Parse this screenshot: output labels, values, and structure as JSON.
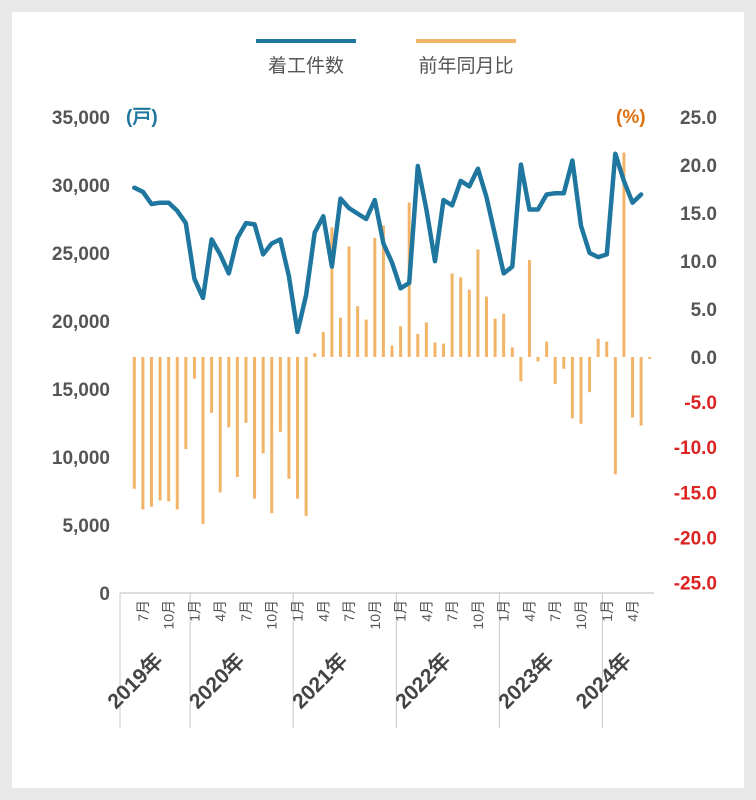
{
  "chart_data": {
    "type": "bar+line",
    "legend": [
      {
        "label": "着工件数",
        "color": "#1f77a0"
      },
      {
        "label": "前年同月比",
        "color": "#f2b468"
      }
    ],
    "y_left": {
      "unit_label": "(戸)",
      "unit_color": "#1f77a0",
      "min": 0,
      "max": 35000,
      "step": 5000,
      "ticks": [
        "0",
        "5,000",
        "10,000",
        "15,000",
        "20,000",
        "25,000",
        "30,000",
        "35,000"
      ]
    },
    "y_right": {
      "unit_label": "(%)",
      "unit_color": "#e07010",
      "min": -25,
      "max": 25,
      "step": 5,
      "ticks": [
        "25.0",
        "20.0",
        "15.0",
        "10.0",
        "5.0",
        "0.0",
        "-5.0",
        "-10.0",
        "-15.0",
        "-20.0",
        "-25.0"
      ],
      "positive_color": "#555555",
      "negative_color": "#dd2222"
    },
    "months": [
      "2019-06",
      "2019-07",
      "2019-08",
      "2019-09",
      "2019-10",
      "2019-11",
      "2019-12",
      "2020-01",
      "2020-02",
      "2020-03",
      "2020-04",
      "2020-05",
      "2020-06",
      "2020-07",
      "2020-08",
      "2020-09",
      "2020-10",
      "2020-11",
      "2020-12",
      "2021-01",
      "2021-02",
      "2021-03",
      "2021-04",
      "2021-05",
      "2021-06",
      "2021-07",
      "2021-08",
      "2021-09",
      "2021-10",
      "2021-11",
      "2021-12",
      "2022-01",
      "2022-02",
      "2022-03",
      "2022-04",
      "2022-05",
      "2022-06",
      "2022-07",
      "2022-08",
      "2022-09",
      "2022-10",
      "2022-11",
      "2022-12",
      "2023-01",
      "2023-02",
      "2023-03",
      "2023-04",
      "2023-05",
      "2023-06",
      "2023-07",
      "2023-08",
      "2023-09",
      "2023-10",
      "2023-11",
      "2023-12",
      "2024-01",
      "2024-02",
      "2024-03",
      "2024-04",
      "2024-05",
      "2024-06"
    ],
    "series": [
      {
        "name": "着工件数",
        "type": "line",
        "axis": "left",
        "color": "#1f77a0",
        "values": [
          29800,
          29500,
          28600,
          28700,
          28700,
          28100,
          27200,
          23100,
          21700,
          26000,
          24900,
          23500,
          26100,
          27200,
          27100,
          24900,
          25700,
          26000,
          23300,
          19200,
          21900,
          26500,
          27700,
          24000,
          29000,
          28300,
          27900,
          27500,
          28900,
          25700,
          24300,
          22400,
          22800,
          31400,
          28200,
          24400,
          28900,
          28500,
          30300,
          29900,
          31200,
          29100,
          26300,
          23500,
          24000,
          31500,
          28200,
          28200,
          29300,
          29400,
          29400,
          31800,
          27000,
          25000,
          24700,
          24900,
          32300,
          30300,
          28700,
          29300,
          0
        ],
        "__note": "last value unused"
      },
      {
        "name": "前年同月比",
        "type": "bar",
        "axis": "right",
        "color": "#f2b468",
        "values": [
          -14.6,
          -16.9,
          -16.6,
          -15.9,
          -16.0,
          -16.9,
          -10.2,
          -2.4,
          -18.5,
          -6.2,
          -15.0,
          -7.8,
          -13.3,
          -7.3,
          -15.7,
          -10.7,
          -17.3,
          -8.3,
          -13.5,
          -15.7,
          -17.6,
          0.4,
          2.6,
          13.5,
          4.1,
          11.5,
          5.3,
          3.9,
          12.4,
          13.7,
          1.2,
          3.2,
          16.1,
          2.4,
          3.6,
          1.5,
          1.4,
          8.7,
          8.3,
          7.0,
          11.2,
          6.3,
          4.0,
          4.5,
          1.0,
          -2.7,
          10.1,
          -0.5,
          1.6,
          -3.0,
          -1.3,
          -6.8,
          -7.4,
          -3.9,
          1.9,
          1.6,
          -13.0,
          21.3,
          -6.7,
          -7.6,
          -0.2
        ]
      }
    ],
    "x_tick_labels": [
      {
        "month": "2019-07",
        "label": "7月"
      },
      {
        "month": "2019-10",
        "label": "10月"
      },
      {
        "month": "2020-01",
        "label": "1月"
      },
      {
        "month": "2020-04",
        "label": "4月"
      },
      {
        "month": "2020-07",
        "label": "7月"
      },
      {
        "month": "2020-10",
        "label": "10月"
      },
      {
        "month": "2021-01",
        "label": "1月"
      },
      {
        "month": "2021-04",
        "label": "4月"
      },
      {
        "month": "2021-07",
        "label": "7月"
      },
      {
        "month": "2021-10",
        "label": "10月"
      },
      {
        "month": "2022-01",
        "label": "1月"
      },
      {
        "month": "2022-04",
        "label": "4月"
      },
      {
        "month": "2022-07",
        "label": "7月"
      },
      {
        "month": "2022-10",
        "label": "10月"
      },
      {
        "month": "2023-01",
        "label": "1月"
      },
      {
        "month": "2023-04",
        "label": "4月"
      },
      {
        "month": "2023-07",
        "label": "7月"
      },
      {
        "month": "2023-10",
        "label": "10月"
      },
      {
        "month": "2024-01",
        "label": "1月"
      },
      {
        "month": "2024-04",
        "label": "4月"
      }
    ],
    "year_groups": [
      {
        "label": "2019年",
        "first": "2019-06",
        "last": "2019-12"
      },
      {
        "label": "2020年",
        "first": "2020-01",
        "last": "2020-12"
      },
      {
        "label": "2021年",
        "first": "2021-01",
        "last": "2021-12"
      },
      {
        "label": "2022年",
        "first": "2022-01",
        "last": "2022-12"
      },
      {
        "label": "2023年",
        "first": "2023-01",
        "last": "2023-12"
      },
      {
        "label": "2024年",
        "first": "2024-01",
        "last": "2024-06"
      }
    ],
    "grid": false,
    "legend_position": "top"
  }
}
